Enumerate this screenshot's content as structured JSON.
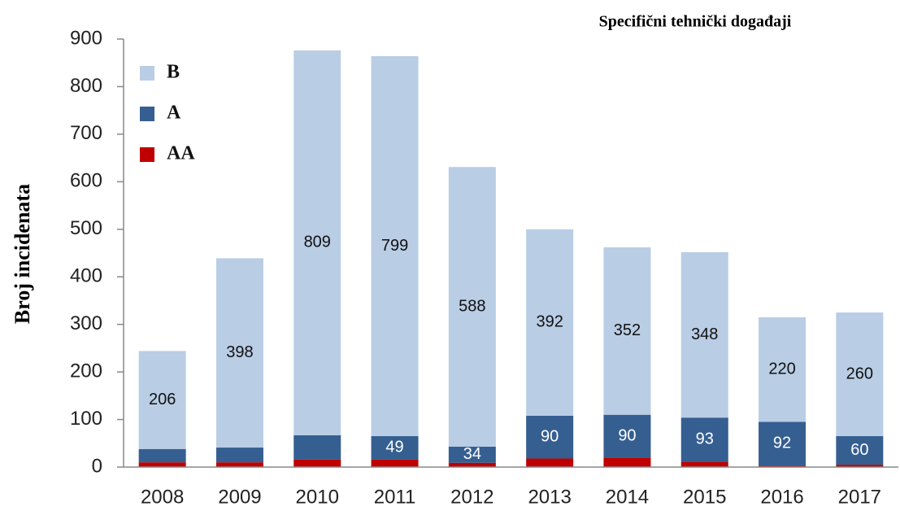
{
  "chart_data": {
    "type": "stacked_bar",
    "title": "Specifični tehnički događaji",
    "y_label": "Broj incidenata",
    "categories": [
      "2008",
      "2009",
      "2010",
      "2011",
      "2012",
      "2013",
      "2014",
      "2015",
      "2016",
      "2017"
    ],
    "series": [
      {
        "name": "AA",
        "color": "#c00000",
        "values": [
          10,
          10,
          16,
          16,
          9,
          18,
          20,
          11,
          3,
          5
        ],
        "labels_shown": [
          false,
          false,
          false,
          false,
          false,
          false,
          false,
          false,
          false,
          false
        ],
        "label_color": "#ffffff"
      },
      {
        "name": "A",
        "color": "#355f91",
        "values": [
          28,
          31,
          51,
          49,
          34,
          90,
          90,
          93,
          92,
          60
        ],
        "labels_shown": [
          false,
          false,
          false,
          true,
          true,
          true,
          true,
          true,
          true,
          true
        ],
        "label_color": "#ffffff"
      },
      {
        "name": "B",
        "color": "#b9cde5",
        "values": [
          206,
          398,
          809,
          799,
          588,
          392,
          352,
          348,
          220,
          260
        ],
        "labels_shown": [
          true,
          true,
          true,
          true,
          true,
          true,
          true,
          true,
          true,
          true
        ],
        "label_color": "#111111"
      }
    ],
    "ylim": [
      0,
      900
    ],
    "yticks": [
      0,
      100,
      200,
      300,
      400,
      500,
      600,
      700,
      800,
      900
    ],
    "legend": "upper left",
    "grid": false
  }
}
